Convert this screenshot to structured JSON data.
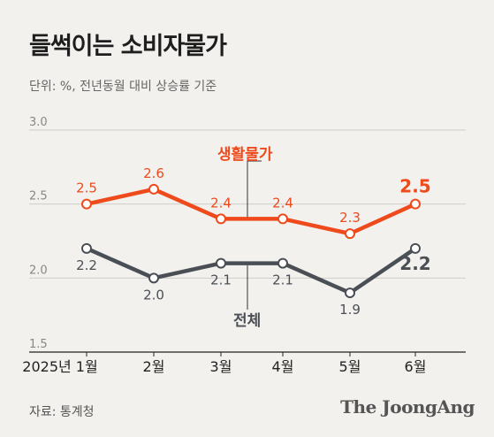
{
  "title": "들썩이는 소비자물가",
  "subtitle": "단위: %, 전년동월 대비 상승률 기준",
  "source": "자료: 통계청",
  "brand": "The JoongAng",
  "chart_data": {
    "type": "line",
    "categories": [
      "2025년 1월",
      "2월",
      "3월",
      "4월",
      "5월",
      "6월"
    ],
    "ylim": [
      1.5,
      3.0
    ],
    "yticks": [
      "3.0",
      "2.5",
      "2.0",
      "1.5"
    ],
    "grid": true,
    "series": [
      {
        "name": "생활물가",
        "values": [
          2.5,
          2.6,
          2.4,
          2.4,
          2.3,
          2.5
        ],
        "labels": [
          "2.5",
          "2.6",
          "2.4",
          "2.4",
          "2.3",
          "2.5"
        ],
        "color": "#ee4a1c"
      },
      {
        "name": "전체",
        "values": [
          2.2,
          2.0,
          2.1,
          2.1,
          1.9,
          2.2
        ],
        "labels": [
          "2.2",
          "2.0",
          "2.1",
          "2.1",
          "1.9",
          "2.2"
        ],
        "color": "#4a4f56"
      }
    ]
  }
}
